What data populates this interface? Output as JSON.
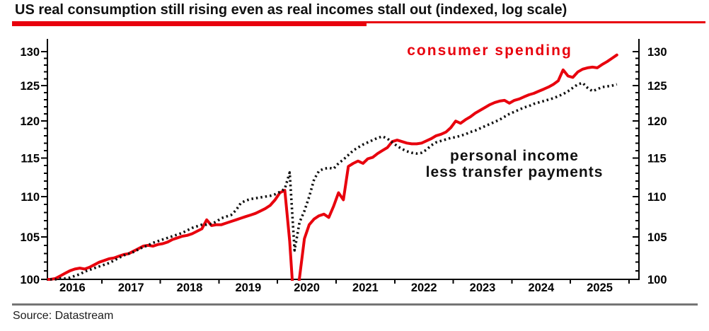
{
  "title": "US real consumption still rising even as real incomes stall out (indexed, log scale)",
  "source": "Source: Datastream",
  "colors": {
    "accent_red": "#e8000d",
    "line_black": "#111111",
    "separator_gray": "#757575",
    "axis_black": "#000000"
  },
  "labels": {
    "spending": "consumer spending",
    "income_line1": "personal income",
    "income_line2": "less transfer payments"
  },
  "chart_data": {
    "type": "line",
    "title": "US real consumption still rising even as real incomes stall out (indexed, log scale)",
    "y_scale": "log",
    "ylim": [
      100,
      130
    ],
    "y_ticks": [
      100,
      105,
      110,
      115,
      120,
      125,
      130
    ],
    "y_minor_step": 1,
    "x_year_labels": [
      2016,
      2017,
      2018,
      2019,
      2020,
      2021,
      2022,
      2023,
      2024,
      2025
    ],
    "x_start": "2016-01",
    "x_end": "2025-10",
    "frequency": "monthly",
    "legend_position": "inline-annotations",
    "grid": false,
    "series": [
      {
        "name": "consumer spending",
        "style": "solid",
        "color": "#e8000d",
        "values": [
          100.0,
          100.0,
          100.1,
          100.4,
          100.7,
          101.0,
          101.2,
          101.3,
          101.2,
          101.4,
          101.7,
          102.0,
          102.2,
          102.4,
          102.5,
          102.7,
          102.9,
          103.0,
          103.3,
          103.6,
          103.9,
          104.0,
          103.9,
          104.1,
          104.2,
          104.4,
          104.7,
          104.9,
          105.1,
          105.2,
          105.4,
          105.7,
          106.0,
          107.1,
          106.4,
          106.5,
          106.5,
          106.7,
          106.9,
          107.1,
          107.3,
          107.5,
          107.7,
          107.9,
          108.2,
          108.5,
          108.9,
          109.6,
          110.5,
          110.8,
          104.5,
          96.0,
          100.2,
          104.8,
          106.5,
          107.2,
          107.6,
          107.8,
          107.4,
          108.8,
          110.5,
          109.6,
          113.9,
          114.3,
          114.6,
          114.3,
          114.9,
          115.1,
          115.6,
          116.0,
          116.4,
          117.2,
          117.4,
          117.2,
          117.0,
          116.9,
          116.9,
          117.0,
          117.3,
          117.6,
          118.0,
          118.2,
          118.5,
          119.1,
          120.0,
          119.7,
          120.2,
          120.6,
          121.1,
          121.5,
          121.9,
          122.3,
          122.6,
          122.8,
          122.9,
          122.5,
          122.9,
          123.1,
          123.4,
          123.7,
          123.9,
          124.2,
          124.5,
          124.8,
          125.2,
          125.7,
          127.3,
          126.4,
          126.2,
          127.0,
          127.4,
          127.6,
          127.7,
          127.6,
          128.1,
          128.5,
          129.0,
          129.5
        ]
      },
      {
        "name": "personal income less transfer payments",
        "style": "dotted",
        "color": "#111111",
        "values": [
          100.0,
          100.0,
          100.0,
          100.1,
          100.1,
          100.2,
          100.4,
          100.6,
          100.9,
          101.1,
          101.3,
          101.5,
          101.7,
          101.9,
          102.2,
          102.5,
          102.8,
          103.0,
          103.2,
          103.5,
          103.8,
          104.0,
          104.3,
          104.5,
          104.7,
          104.9,
          105.1,
          105.3,
          105.5,
          105.8,
          106.1,
          106.3,
          106.5,
          106.5,
          106.6,
          106.9,
          107.3,
          107.5,
          107.7,
          108.3,
          109.2,
          109.5,
          109.7,
          109.8,
          109.9,
          110.0,
          110.1,
          110.3,
          110.6,
          111.0,
          113.1,
          103.4,
          106.8,
          108.2,
          110.0,
          112.2,
          113.3,
          113.6,
          113.7,
          113.6,
          114.3,
          114.8,
          115.4,
          116.0,
          116.4,
          116.8,
          117.1,
          117.4,
          117.7,
          117.9,
          117.6,
          117.1,
          116.6,
          116.2,
          115.9,
          115.7,
          115.6,
          115.7,
          116.1,
          116.7,
          117.1,
          117.3,
          117.5,
          117.7,
          117.8,
          118.0,
          118.2,
          118.5,
          118.7,
          119.0,
          119.3,
          119.6,
          119.9,
          120.2,
          120.6,
          121.0,
          121.3,
          121.6,
          121.9,
          122.1,
          122.4,
          122.6,
          122.8,
          123.0,
          123.2,
          123.5,
          123.8,
          124.2,
          124.7,
          125.2,
          125.4,
          124.7,
          124.2,
          124.5,
          124.8,
          124.9,
          125.0,
          125.2
        ]
      }
    ]
  }
}
